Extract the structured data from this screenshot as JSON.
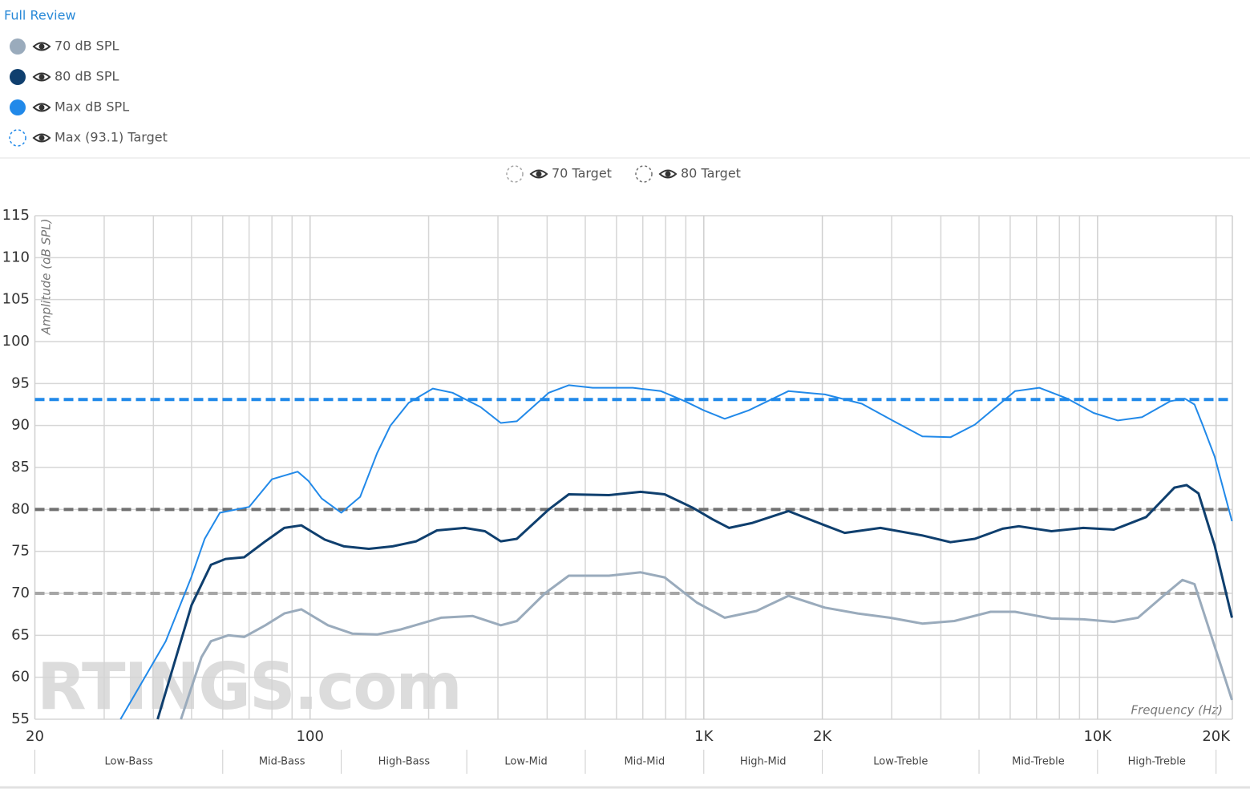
{
  "link": "Full Review",
  "chart_data": {
    "type": "line",
    "x_label": "Frequency (Hz)",
    "y_label": "Amplitude (dB SPL)",
    "watermark": "RTINGS.com",
    "xscale": "log",
    "grid": true,
    "xlim": [
      20,
      22000
    ],
    "ylim": [
      55,
      115
    ],
    "xticks": [
      20,
      100,
      {
        "value": 1000,
        "label": "1K"
      },
      {
        "value": 2000,
        "label": "2K"
      },
      {
        "value": 10000,
        "label": "10K"
      },
      {
        "value": 20000,
        "label": "20K"
      }
    ],
    "xminor": [
      30,
      40,
      50,
      60,
      70,
      80,
      90,
      200,
      300,
      400,
      500,
      600,
      700,
      800,
      900,
      3000,
      4000,
      5000,
      6000,
      7000,
      8000,
      9000
    ],
    "yticks": [
      55,
      60,
      65,
      70,
      75,
      80,
      85,
      90,
      95,
      100,
      105,
      110,
      115
    ],
    "bands": [
      "Low-Bass",
      "Mid-Bass",
      "High-Bass",
      "Low-Mid",
      "Mid-Mid",
      "High-Mid",
      "Low-Treble",
      "Mid-Treble",
      "High-Treble"
    ],
    "band_edges": [
      20,
      60,
      120,
      250,
      500,
      1000,
      2000,
      5000,
      10000,
      20000
    ],
    "series": [
      {
        "name": "70 dB SPL",
        "color": "#9aabbc",
        "x": [
          47,
          53,
          56,
          62,
          68,
          77,
          86,
          95,
          111,
          128,
          148,
          170,
          215,
          259,
          305,
          335,
          395,
          454,
          574,
          691,
          795,
          960,
          1130,
          1360,
          1640,
          2030,
          2460,
          2970,
          3590,
          4330,
          5350,
          6170,
          7640,
          9200,
          11000,
          12670,
          14950,
          16430,
          17630,
          19370,
          21950
        ],
        "values": [
          55,
          62.4,
          64.3,
          65,
          64.8,
          66.2,
          67.6,
          68.1,
          66.2,
          65.2,
          65.1,
          65.7,
          67.1,
          67.3,
          66.2,
          66.7,
          70,
          72.1,
          72.1,
          72.5,
          71.9,
          68.9,
          67.1,
          67.9,
          69.7,
          68.3,
          67.6,
          67.1,
          66.4,
          66.7,
          67.8,
          67.8,
          67,
          66.9,
          66.6,
          67.1,
          70,
          71.6,
          71.1,
          65.2,
          57.3
        ]
      },
      {
        "name": "80 dB SPL",
        "color": "#0f3f6e",
        "x": [
          41,
          50,
          56,
          61,
          68,
          77,
          86,
          95,
          109,
          122,
          141,
          162,
          186,
          210,
          247,
          278,
          305,
          335,
          404,
          454,
          574,
          691,
          795,
          937,
          1055,
          1160,
          1330,
          1640,
          2030,
          2280,
          2810,
          3590,
          4230,
          4880,
          5740,
          6310,
          7640,
          9200,
          11000,
          13290,
          15680,
          16830,
          18050,
          19830,
          21950
        ],
        "values": [
          55,
          68.6,
          73.4,
          74.1,
          74.3,
          76.2,
          77.8,
          78.1,
          76.4,
          75.6,
          75.3,
          75.6,
          76.2,
          77.5,
          77.8,
          77.4,
          76.2,
          76.5,
          80,
          81.8,
          81.7,
          82.1,
          81.8,
          80.2,
          78.8,
          77.8,
          78.4,
          79.8,
          78.1,
          77.2,
          77.8,
          76.9,
          76.1,
          76.5,
          77.7,
          78,
          77.4,
          77.8,
          77.6,
          79.1,
          82.6,
          82.9,
          81.9,
          75.7,
          67.1
        ]
      },
      {
        "name": "Max dB SPL",
        "color": "#2189e9",
        "x": [
          33,
          43,
          50,
          54,
          59,
          70,
          80,
          93,
          99,
          107,
          120,
          134,
          148,
          160,
          178,
          205,
          230,
          271,
          305,
          335,
          404,
          454,
          522,
          660,
          778,
          895,
          1000,
          1130,
          1300,
          1640,
          2030,
          2520,
          3040,
          3590,
          4230,
          4880,
          6170,
          7110,
          8390,
          9770,
          11260,
          12970,
          15310,
          16670,
          17630,
          18480,
          19830,
          21950
        ],
        "values": [
          55,
          64.3,
          72,
          76.5,
          79.6,
          80.3,
          83.6,
          84.5,
          83.4,
          81.3,
          79.6,
          81.5,
          86.7,
          90,
          92.7,
          94.4,
          93.9,
          92.2,
          90.3,
          90.5,
          93.9,
          94.8,
          94.5,
          94.5,
          94.1,
          92.9,
          91.8,
          90.8,
          91.8,
          94.1,
          93.7,
          92.6,
          90.5,
          88.7,
          88.6,
          90.1,
          94.1,
          94.5,
          93.2,
          91.5,
          90.6,
          91,
          92.9,
          93.2,
          92.5,
          90.1,
          86.3,
          78.6
        ]
      }
    ],
    "targets": [
      {
        "name": "Max (93.1) Target",
        "color": "#2189e9",
        "value": 93.1
      },
      {
        "name": "70 Target",
        "color": "#a6a6a6",
        "value": 70
      },
      {
        "name": "80 Target",
        "color": "#707070",
        "value": 80
      }
    ]
  }
}
